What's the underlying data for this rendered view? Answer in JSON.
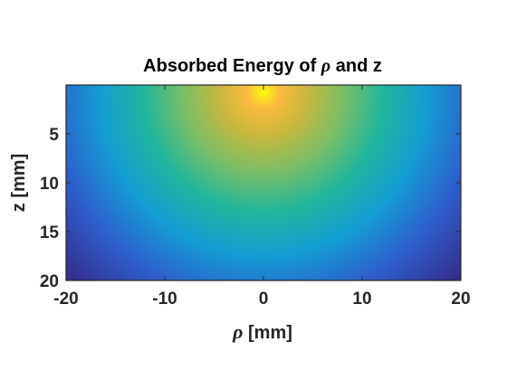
{
  "chart_data": {
    "type": "heatmap",
    "title_parts": [
      "Absorbed Energy of ",
      "ρ",
      " and z"
    ],
    "xlabel_parts": [
      "ρ",
      " [mm]"
    ],
    "ylabel": "z [mm]",
    "xlim": [
      -20,
      20
    ],
    "ylim": [
      0,
      20
    ],
    "y_reversed": true,
    "x_ticks": [
      -20,
      -10,
      0,
      10,
      20
    ],
    "x_tick_labels": [
      "-20",
      "-10",
      "0",
      "10",
      "20"
    ],
    "y_ticks": [
      5,
      10,
      15,
      20
    ],
    "y_tick_labels": [
      "5",
      "10",
      "15",
      "20"
    ],
    "peak": {
      "x": 0,
      "y": 0
    },
    "colormap": "parula",
    "colormap_stops": [
      "#352a87",
      "#2e5fcd",
      "#139ed3",
      "#21b69c",
      "#78be68",
      "#c9b83c",
      "#fcba3d",
      "#f9fb0e"
    ],
    "grid": false
  }
}
